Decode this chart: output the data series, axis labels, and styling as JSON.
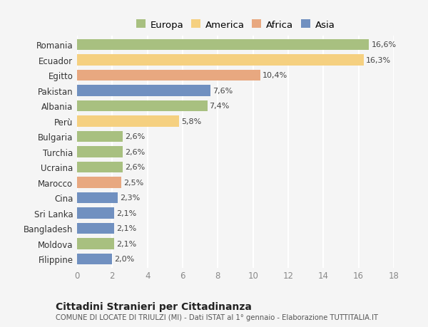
{
  "categories": [
    "Romania",
    "Ecuador",
    "Egitto",
    "Pakistan",
    "Albania",
    "Perù",
    "Bulgaria",
    "Turchia",
    "Ucraina",
    "Marocco",
    "Cina",
    "Sri Lanka",
    "Bangladesh",
    "Moldova",
    "Filippine"
  ],
  "values": [
    16.6,
    16.3,
    10.4,
    7.6,
    7.4,
    5.8,
    2.6,
    2.6,
    2.6,
    2.5,
    2.3,
    2.1,
    2.1,
    2.1,
    2.0
  ],
  "labels": [
    "16,6%",
    "16,3%",
    "10,4%",
    "7,6%",
    "7,4%",
    "5,8%",
    "2,6%",
    "2,6%",
    "2,6%",
    "2,5%",
    "2,3%",
    "2,1%",
    "2,1%",
    "2,1%",
    "2,0%"
  ],
  "continents": [
    "Europa",
    "America",
    "Africa",
    "Asia",
    "Europa",
    "America",
    "Europa",
    "Europa",
    "Europa",
    "Africa",
    "Asia",
    "Asia",
    "Asia",
    "Europa",
    "Asia"
  ],
  "colors": {
    "Europa": "#a8c080",
    "America": "#f5d080",
    "Africa": "#e8a880",
    "Asia": "#7090c0"
  },
  "xlim": [
    0,
    18
  ],
  "xticks": [
    0,
    2,
    4,
    6,
    8,
    10,
    12,
    14,
    16,
    18
  ],
  "title": "Cittadini Stranieri per Cittadinanza",
  "subtitle": "COMUNE DI LOCATE DI TRIULZI (MI) - Dati ISTAT al 1° gennaio - Elaborazione TUTTITALIA.IT",
  "background_color": "#f5f5f5",
  "grid_color": "#ffffff",
  "legend_order": [
    "Europa",
    "America",
    "Africa",
    "Asia"
  ]
}
